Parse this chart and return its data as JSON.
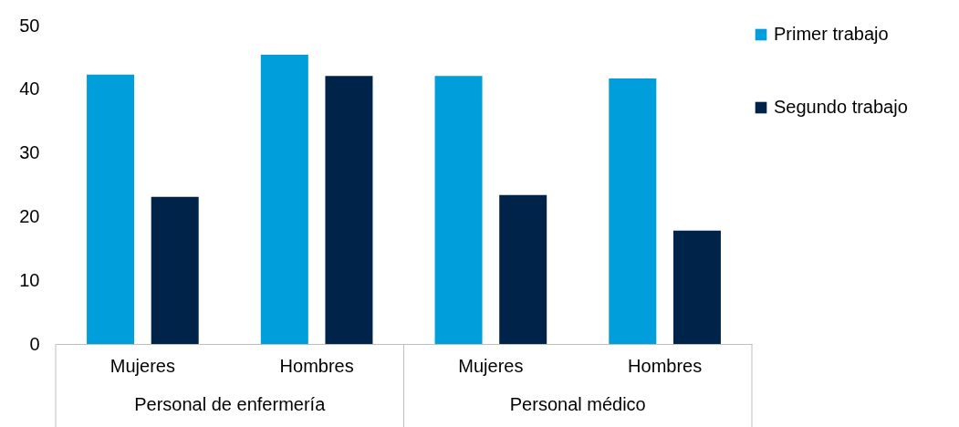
{
  "chart_data": {
    "type": "bar",
    "categories": [
      "Mujeres",
      "Hombres",
      "Mujeres",
      "Hombres"
    ],
    "series": [
      {
        "name": "Primer trabajo",
        "color": "#009fdb",
        "values": [
          42.3,
          45.4,
          42.1,
          41.7
        ]
      },
      {
        "name": "Segundo trabajo",
        "color": "#00234a",
        "values": [
          23.1,
          42.1,
          23.4,
          17.8
        ]
      }
    ],
    "ylim": [
      0,
      50
    ],
    "yticks": [
      0,
      10,
      20,
      30,
      40,
      50
    ],
    "grid": false,
    "legend": "right",
    "annotations": [
      "Personal de enfermería",
      "Personal médico"
    ]
  }
}
